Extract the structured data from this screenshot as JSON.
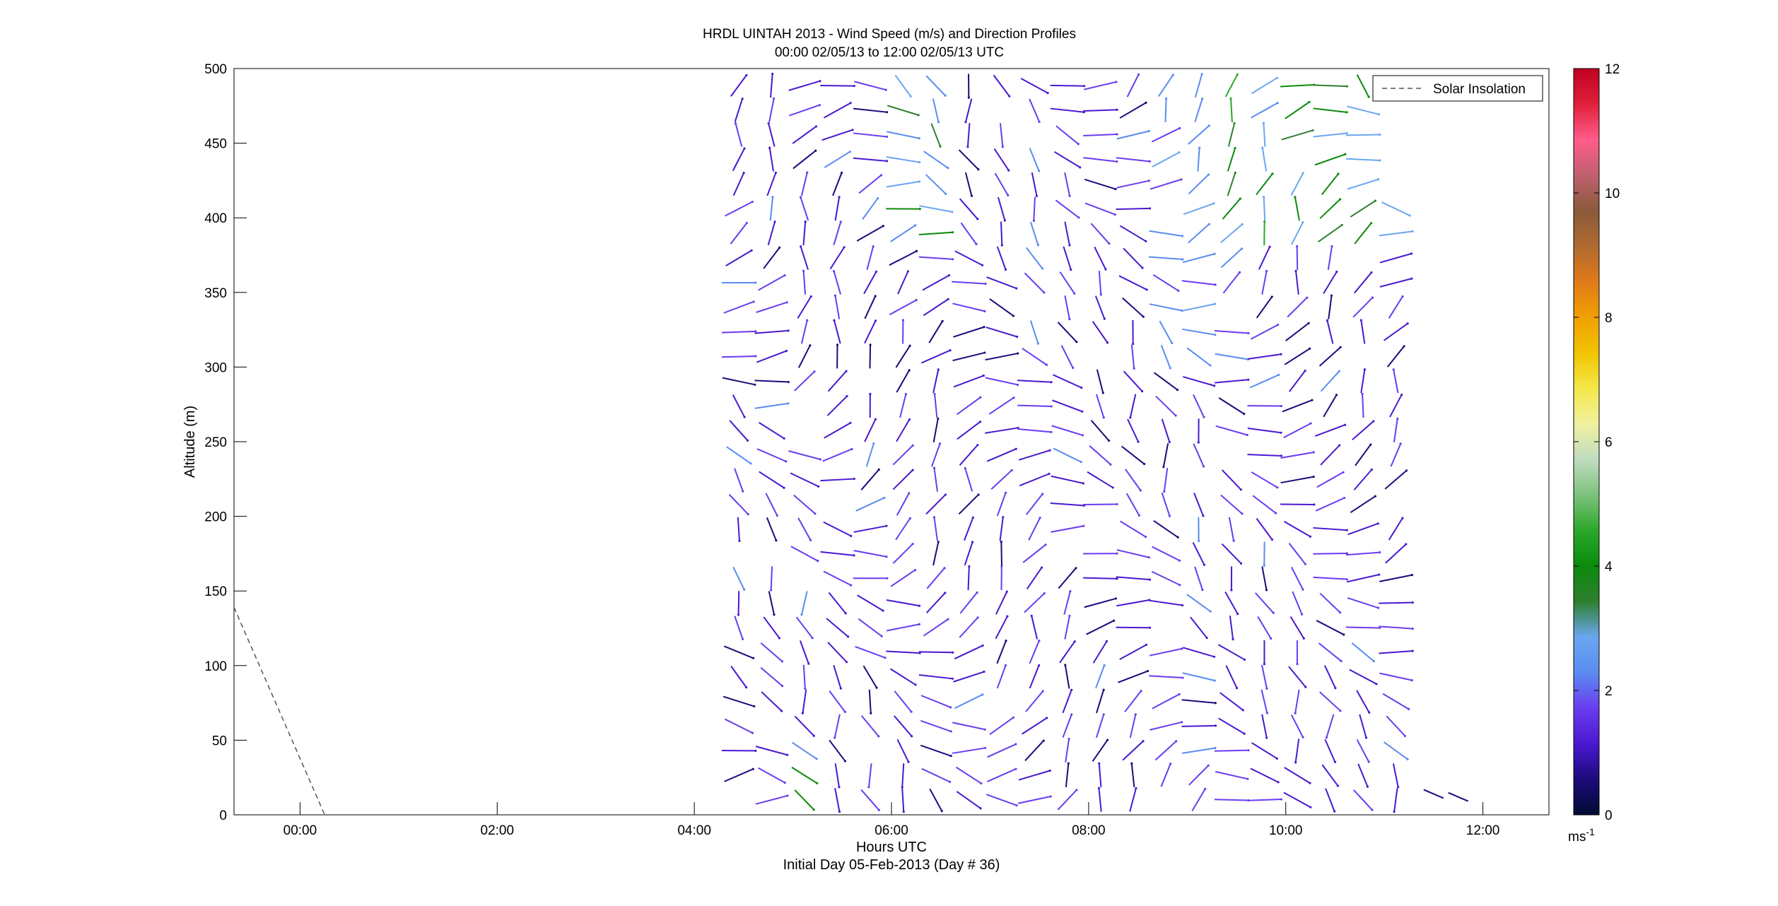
{
  "chart_data": {
    "type": "vector-field",
    "title": "HRDL UINTAH 2013 - Wind Speed (m/s) and Direction Profiles",
    "subtitle": "00:00 02/05/13 to 12:00 02/05/13  UTC",
    "xlabel": "Hours UTC",
    "xlabel2": "Initial Day 05-Feb-2013 (Day # 36)",
    "ylabel": "Altitude (m)",
    "xlim": [
      -0.67,
      12.67
    ],
    "ylim": [
      0,
      500
    ],
    "x_ticks": [
      0,
      2,
      4,
      6,
      8,
      10,
      12
    ],
    "x_tick_labels": [
      "00:00",
      "02:00",
      "04:00",
      "06:00",
      "08:00",
      "10:00",
      "12:00"
    ],
    "y_ticks": [
      0,
      50,
      100,
      150,
      200,
      250,
      300,
      350,
      400,
      450,
      500
    ],
    "y_tick_labels": [
      "0",
      "50",
      "100",
      "150",
      "200",
      "250",
      "300",
      "350",
      "400",
      "450",
      "500"
    ],
    "grid": false,
    "legend": {
      "placement": "top-right",
      "entries": [
        "Solar Insolation"
      ]
    },
    "solar_insolation": {
      "style": "dashed",
      "x": [
        -0.67,
        0.25
      ],
      "y": [
        139,
        0
      ]
    },
    "colorbar": {
      "min": 0,
      "max": 12,
      "ticks": [
        0,
        2,
        4,
        6,
        8,
        10,
        12
      ],
      "tick_labels": [
        "0",
        "2",
        "4",
        "6",
        "8",
        "10",
        "12"
      ],
      "unit_base": "ms",
      "unit_exp": "-1"
    },
    "profiles": {
      "start_hour": 4.45,
      "end_hour": 11.15,
      "step_hours": 0.3333,
      "altitude_start": 10,
      "altitude_end": 490,
      "altitude_step": 16.5,
      "speed_range_ms": [
        0,
        4.5
      ]
    }
  },
  "colors": {
    "axis": "#000000",
    "solar": "#555555",
    "colormap": [
      "#000b33",
      "#1d0a7a",
      "#4a18d0",
      "#6a3cf0",
      "#5a8cf0",
      "#6aa6f0",
      "#2f7f2f",
      "#0c8a0c",
      "#2aa82a",
      "#7cc27c",
      "#c0dcc0",
      "#f0f0a0",
      "#f5e84a",
      "#f2c300",
      "#f0a000",
      "#e07a18",
      "#b06a30",
      "#8a5a3a",
      "#c06070",
      "#ff5c8a",
      "#e0203a",
      "#c00020"
    ]
  }
}
